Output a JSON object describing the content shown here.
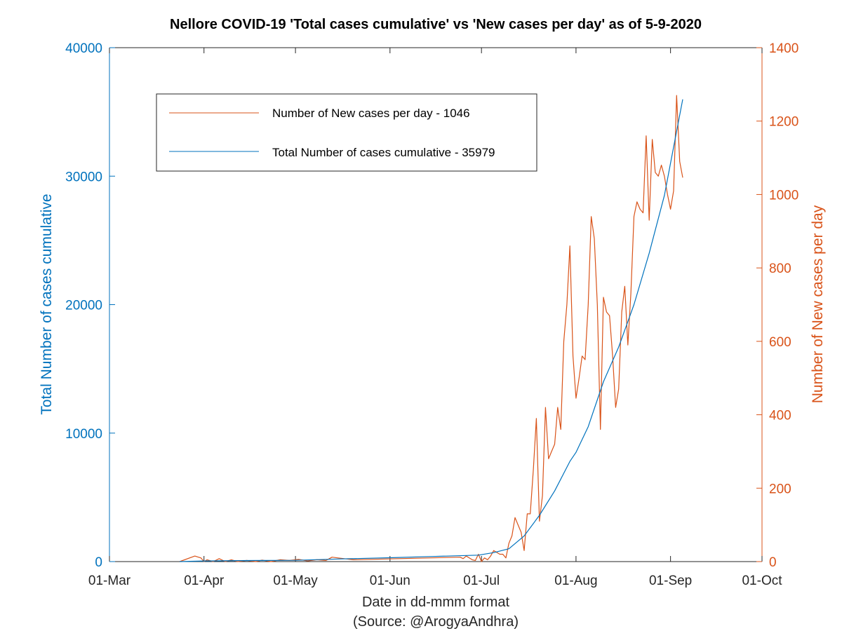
{
  "chart_data": {
    "type": "line",
    "title": "Nellore COVID-19 'Total cases cumulative' vs 'New cases per day' as of 5-9-2020",
    "xlabel": "Date in dd-mmm format",
    "source": "(Source: @ArogyaAndhra)",
    "ylabel_left": "Total Number of cases cumulative",
    "ylabel_right": "Number of New cases per day",
    "x_ticks": [
      "01-Mar",
      "01-Apr",
      "01-May",
      "01-Jun",
      "01-Jul",
      "01-Aug",
      "01-Sep",
      "01-Oct"
    ],
    "x_range": [
      "2020-03-01",
      "2020-10-01"
    ],
    "ylim_left": [
      0,
      40000
    ],
    "ylim_right": [
      0,
      1400
    ],
    "yticks_left": [
      "0",
      "10000",
      "20000",
      "30000",
      "40000"
    ],
    "yticks_right": [
      "0",
      "200",
      "400",
      "600",
      "800",
      "1000",
      "1200",
      "1400"
    ],
    "grid": false,
    "legend_placement": "top-left",
    "colors": {
      "new_cases": "#D95319",
      "cumulative": "#0072BD"
    },
    "legend": [
      {
        "label": "Number of New cases per day - 1046",
        "color": "#D95319"
      },
      {
        "label": "Total Number of cases cumulative - 35979",
        "color": "#0072BD"
      }
    ],
    "series": [
      {
        "name": "Number of New cases per day - 1046",
        "axis": "right",
        "x": [
          "2020-03-24",
          "2020-03-29",
          "2020-03-31",
          "2020-04-01",
          "2020-04-02",
          "2020-04-04",
          "2020-04-06",
          "2020-04-08",
          "2020-04-10",
          "2020-04-12",
          "2020-04-15",
          "2020-04-18",
          "2020-04-20",
          "2020-04-23",
          "2020-04-26",
          "2020-04-29",
          "2020-05-02",
          "2020-05-05",
          "2020-05-08",
          "2020-05-11",
          "2020-05-13",
          "2020-05-15",
          "2020-05-17",
          "2020-05-20",
          "2020-06-24",
          "2020-06-25",
          "2020-06-26",
          "2020-06-27",
          "2020-06-28",
          "2020-06-29",
          "2020-06-30",
          "2020-07-01",
          "2020-07-02",
          "2020-07-03",
          "2020-07-04",
          "2020-07-05",
          "2020-07-06",
          "2020-07-07",
          "2020-07-08",
          "2020-07-09",
          "2020-07-10",
          "2020-07-11",
          "2020-07-12",
          "2020-07-13",
          "2020-07-14",
          "2020-07-15",
          "2020-07-16",
          "2020-07-17",
          "2020-07-18",
          "2020-07-19",
          "2020-07-20",
          "2020-07-21",
          "2020-07-22",
          "2020-07-23",
          "2020-07-24",
          "2020-07-25",
          "2020-07-26",
          "2020-07-27",
          "2020-07-28",
          "2020-07-29",
          "2020-07-30",
          "2020-07-31",
          "2020-08-01",
          "2020-08-02",
          "2020-08-03",
          "2020-08-04",
          "2020-08-05",
          "2020-08-06",
          "2020-08-07",
          "2020-08-08",
          "2020-08-09",
          "2020-08-10",
          "2020-08-11",
          "2020-08-12",
          "2020-08-13",
          "2020-08-14",
          "2020-08-15",
          "2020-08-16",
          "2020-08-17",
          "2020-08-18",
          "2020-08-19",
          "2020-08-20",
          "2020-08-21",
          "2020-08-22",
          "2020-08-23",
          "2020-08-24",
          "2020-08-25",
          "2020-08-26",
          "2020-08-27",
          "2020-08-28",
          "2020-08-29",
          "2020-08-30",
          "2020-08-31",
          "2020-09-01",
          "2020-09-02",
          "2020-09-03",
          "2020-09-04",
          "2020-09-05"
        ],
        "values": [
          0,
          15,
          10,
          0,
          5,
          0,
          8,
          0,
          5,
          0,
          3,
          0,
          4,
          0,
          5,
          3,
          6,
          2,
          5,
          3,
          12,
          10,
          8,
          5,
          12,
          8,
          15,
          10,
          5,
          3,
          20,
          0,
          10,
          5,
          15,
          30,
          25,
          20,
          20,
          10,
          50,
          70,
          120,
          100,
          80,
          30,
          130,
          130,
          250,
          390,
          110,
          180,
          420,
          280,
          300,
          320,
          420,
          360,
          600,
          700,
          860,
          560,
          445,
          500,
          560,
          550,
          700,
          940,
          880,
          700,
          360,
          720,
          680,
          670,
          560,
          420,
          470,
          680,
          750,
          590,
          730,
          940,
          980,
          960,
          950,
          1160,
          930,
          1150,
          1060,
          1050,
          1080,
          1050,
          1000,
          960,
          1010,
          1270,
          1090,
          1046
        ]
      },
      {
        "name": "Total Number of cases cumulative - 35979",
        "axis": "left",
        "x": [
          "2020-03-24",
          "2020-04-01",
          "2020-04-15",
          "2020-05-01",
          "2020-05-15",
          "2020-06-01",
          "2020-06-15",
          "2020-06-30",
          "2020-07-05",
          "2020-07-10",
          "2020-07-15",
          "2020-07-20",
          "2020-07-25",
          "2020-07-30",
          "2020-08-01",
          "2020-08-05",
          "2020-08-10",
          "2020-08-15",
          "2020-08-20",
          "2020-08-25",
          "2020-08-30",
          "2020-09-01",
          "2020-09-05"
        ],
        "values": [
          0,
          50,
          80,
          100,
          200,
          300,
          400,
          500,
          700,
          1000,
          2000,
          3600,
          5500,
          7800,
          8500,
          10500,
          14000,
          16700,
          20000,
          24000,
          28500,
          31000,
          35979
        ]
      }
    ]
  }
}
